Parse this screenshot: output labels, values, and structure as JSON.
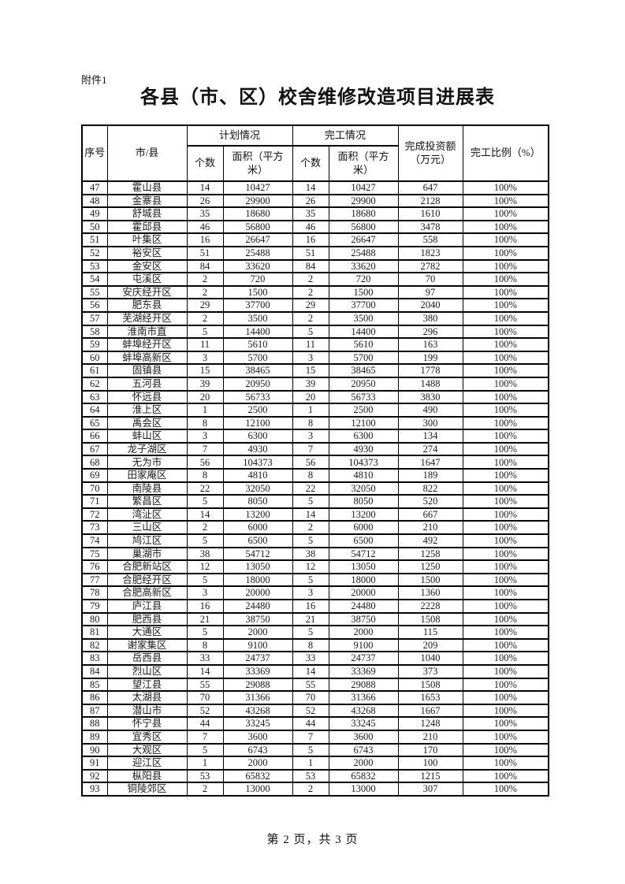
{
  "page": {
    "attachment_label": "附件1",
    "title": "各县（市、区）校舍维修改造项目进展表",
    "footer": "第 2 页，共 3 页"
  },
  "table": {
    "headers": {
      "seq": "序号",
      "city": "市/县",
      "plan_group": "计划情况",
      "done_group": "完工情况",
      "count": "个数",
      "area": "面积（平方\n米）",
      "investment": "完成投资额\n（万元）",
      "ratio": "完工比例（%）"
    },
    "rows": [
      [
        47,
        "霍山县",
        14,
        10427,
        14,
        10427,
        647,
        "100%"
      ],
      [
        48,
        "金寨县",
        26,
        29900,
        26,
        29900,
        2128,
        "100%"
      ],
      [
        49,
        "舒城县",
        35,
        18680,
        35,
        18680,
        1610,
        "100%"
      ],
      [
        50,
        "霍邱县",
        46,
        56800,
        46,
        56800,
        3478,
        "100%"
      ],
      [
        51,
        "叶集区",
        16,
        26647,
        16,
        26647,
        558,
        "100%"
      ],
      [
        52,
        "裕安区",
        51,
        25488,
        51,
        25488,
        1823,
        "100%"
      ],
      [
        53,
        "金安区",
        84,
        33620,
        84,
        33620,
        2782,
        "100%"
      ],
      [
        54,
        "屯溪区",
        2,
        720,
        2,
        720,
        70,
        "100%"
      ],
      [
        55,
        "安庆经开区",
        2,
        1500,
        2,
        1500,
        97,
        "100%"
      ],
      [
        56,
        "肥东县",
        29,
        37700,
        29,
        37700,
        2040,
        "100%"
      ],
      [
        57,
        "芜湖经开区",
        2,
        3500,
        2,
        3500,
        380,
        "100%"
      ],
      [
        58,
        "淮南市直",
        5,
        14400,
        5,
        14400,
        296,
        "100%"
      ],
      [
        59,
        "蚌埠经开区",
        11,
        5610,
        11,
        5610,
        163,
        "100%"
      ],
      [
        60,
        "蚌埠高新区",
        3,
        5700,
        3,
        5700,
        199,
        "100%"
      ],
      [
        61,
        "固镇县",
        15,
        38465,
        15,
        38465,
        1778,
        "100%"
      ],
      [
        62,
        "五河县",
        39,
        20950,
        39,
        20950,
        1488,
        "100%"
      ],
      [
        63,
        "怀远县",
        20,
        56733,
        20,
        56733,
        3830,
        "100%"
      ],
      [
        64,
        "淮上区",
        1,
        2500,
        1,
        2500,
        490,
        "100%"
      ],
      [
        65,
        "禹会区",
        8,
        12100,
        8,
        12100,
        300,
        "100%"
      ],
      [
        66,
        "蚌山区",
        3,
        6300,
        3,
        6300,
        134,
        "100%"
      ],
      [
        67,
        "龙子湖区",
        7,
        4930,
        7,
        4930,
        274,
        "100%"
      ],
      [
        68,
        "无为市",
        56,
        104373,
        56,
        104373,
        1647,
        "100%"
      ],
      [
        69,
        "田家庵区",
        8,
        4810,
        8,
        4810,
        189,
        "100%"
      ],
      [
        70,
        "南陵县",
        22,
        32050,
        22,
        32050,
        822,
        "100%"
      ],
      [
        71,
        "繁昌区",
        5,
        8050,
        5,
        8050,
        520,
        "100%"
      ],
      [
        72,
        "湾沚区",
        14,
        13200,
        14,
        13200,
        667,
        "100%"
      ],
      [
        73,
        "三山区",
        2,
        6000,
        2,
        6000,
        210,
        "100%"
      ],
      [
        74,
        "鸠江区",
        5,
        6500,
        5,
        6500,
        492,
        "100%"
      ],
      [
        75,
        "巢湖市",
        38,
        54712,
        38,
        54712,
        1258,
        "100%"
      ],
      [
        76,
        "合肥新站区",
        12,
        13050,
        12,
        13050,
        1250,
        "100%"
      ],
      [
        77,
        "合肥经开区",
        5,
        18000,
        5,
        18000,
        1500,
        "100%"
      ],
      [
        78,
        "合肥高新区",
        3,
        20000,
        3,
        20000,
        1360,
        "100%"
      ],
      [
        79,
        "庐江县",
        16,
        24480,
        16,
        24480,
        2228,
        "100%"
      ],
      [
        80,
        "肥西县",
        21,
        38750,
        21,
        38750,
        1508,
        "100%"
      ],
      [
        81,
        "大通区",
        5,
        2000,
        5,
        2000,
        115,
        "100%"
      ],
      [
        82,
        "谢家集区",
        8,
        9100,
        8,
        9100,
        209,
        "100%"
      ],
      [
        83,
        "岳西县",
        33,
        24737,
        33,
        24737,
        1040,
        "100%"
      ],
      [
        84,
        "烈山区",
        14,
        33369,
        14,
        33369,
        373,
        "100%"
      ],
      [
        85,
        "望江县",
        55,
        29088,
        55,
        29088,
        1508,
        "100%"
      ],
      [
        86,
        "太湖县",
        70,
        31366,
        70,
        31366,
        1653,
        "100%"
      ],
      [
        87,
        "潜山市",
        52,
        43268,
        52,
        43268,
        1667,
        "100%"
      ],
      [
        88,
        "怀宁县",
        44,
        33245,
        44,
        33245,
        1248,
        "100%"
      ],
      [
        89,
        "宜秀区",
        7,
        3600,
        7,
        3600,
        210,
        "100%"
      ],
      [
        90,
        "大观区",
        5,
        6743,
        5,
        6743,
        170,
        "100%"
      ],
      [
        91,
        "迎江区",
        1,
        2000,
        1,
        2000,
        100,
        "100%"
      ],
      [
        92,
        "枞阳县",
        53,
        65832,
        53,
        65832,
        1215,
        "100%"
      ],
      [
        93,
        "铜陵郊区",
        2,
        13000,
        2,
        13000,
        307,
        "100%"
      ]
    ]
  }
}
